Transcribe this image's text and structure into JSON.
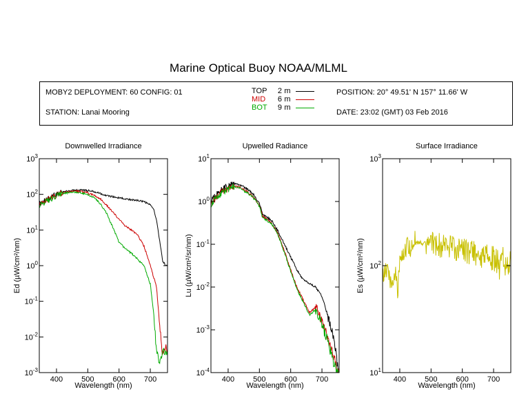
{
  "title": "Marine Optical Buoy NOAA/MLML",
  "info": {
    "deployment": "MOBY2 DEPLOYMENT: 60 CONFIG: 01",
    "station": "STATION: Lanai Mooring",
    "position": "POSITION: 20° 49.51' N   157° 11.66' W",
    "date": "DATE: 23:02 (GMT) 03 Feb 2016",
    "legend": [
      {
        "name": "TOP",
        "depth": "2",
        "unit": "m",
        "color": "#000000"
      },
      {
        "name": "MID",
        "depth": "6",
        "unit": "m",
        "color": "#cc0000"
      },
      {
        "name": "BOT",
        "depth": "9",
        "unit": "m",
        "color": "#00aa00"
      }
    ]
  },
  "chart_data": [
    {
      "type": "line",
      "title": "Downwelled Irradiance",
      "xlabel": "Wavelength (nm)",
      "ylabel": "Ed  (µW/cm²/nm)",
      "xlim": [
        345,
        755
      ],
      "ylim": [
        0.001,
        1000
      ],
      "yscale": "log",
      "xticks": [
        400,
        500,
        600,
        700
      ],
      "yticks": [
        {
          "base": "10",
          "exp": "-3"
        },
        {
          "base": "10",
          "exp": "-2"
        },
        {
          "base": "10",
          "exp": "-1"
        },
        {
          "base": "10",
          "exp": "0"
        },
        {
          "base": "10",
          "exp": "1"
        },
        {
          "base": "10",
          "exp": "2"
        },
        {
          "base": "10",
          "exp": "3"
        }
      ],
      "x": [
        345,
        360,
        380,
        400,
        420,
        440,
        460,
        480,
        500,
        520,
        540,
        560,
        580,
        600,
        620,
        640,
        660,
        680,
        700,
        710,
        720,
        730,
        740,
        750,
        755
      ],
      "series": [
        {
          "color": "#000000",
          "values": [
            55,
            65,
            80,
            100,
            118,
            125,
            130,
            132,
            128,
            118,
            105,
            92,
            85,
            80,
            75,
            70,
            68,
            62,
            50,
            40,
            18,
            5,
            1.3,
            1.0,
            1.0
          ]
        },
        {
          "color": "#cc0000",
          "values": [
            52,
            62,
            76,
            95,
            110,
            118,
            122,
            120,
            110,
            95,
            75,
            50,
            32,
            20,
            13,
            10,
            7,
            3.5,
            1.0,
            0.5,
            0.25,
            0.02,
            0.003,
            0.005,
            0.004
          ]
        },
        {
          "color": "#00aa00",
          "values": [
            50,
            58,
            72,
            90,
            105,
            112,
            115,
            110,
            98,
            80,
            55,
            30,
            12,
            4.5,
            3.0,
            2.2,
            1.5,
            1.0,
            0.3,
            0.05,
            0.004,
            0.002,
            0.004,
            0.003,
            0.003
          ]
        }
      ]
    },
    {
      "type": "line",
      "title": "Upwelled Radiance",
      "xlabel": "Wavelength (nm)",
      "ylabel": "Lu  (µW/cm²/sr/nm)",
      "xlim": [
        345,
        755
      ],
      "ylim": [
        0.0001,
        10
      ],
      "yscale": "log",
      "xticks": [
        400,
        500,
        600,
        700
      ],
      "yticks": [
        {
          "base": "10",
          "exp": "-4"
        },
        {
          "base": "10",
          "exp": "-3"
        },
        {
          "base": "10",
          "exp": "-2"
        },
        {
          "base": "10",
          "exp": "-1"
        },
        {
          "base": "10",
          "exp": "0"
        },
        {
          "base": "10",
          "exp": "1"
        }
      ],
      "x": [
        345,
        360,
        380,
        400,
        420,
        440,
        460,
        480,
        500,
        510,
        520,
        540,
        560,
        580,
        600,
        620,
        640,
        660,
        680,
        700,
        720,
        740,
        750,
        755
      ],
      "series": [
        {
          "color": "#000000",
          "values": [
            1.0,
            1.4,
            1.9,
            2.3,
            2.6,
            2.4,
            2.0,
            1.5,
            0.9,
            0.5,
            0.45,
            0.35,
            0.2,
            0.1,
            0.05,
            0.025,
            0.015,
            0.012,
            0.01,
            0.006,
            0.002,
            0.0005,
            0.00015,
            0.0001
          ]
        },
        {
          "color": "#cc0000",
          "values": [
            0.9,
            1.2,
            1.7,
            2.0,
            2.3,
            2.1,
            1.7,
            1.3,
            0.8,
            0.45,
            0.4,
            0.3,
            0.17,
            0.07,
            0.025,
            0.01,
            0.005,
            0.0025,
            0.0035,
            0.0015,
            0.0006,
            0.0002,
            0.0001,
            0.0001
          ]
        },
        {
          "color": "#00aa00",
          "values": [
            0.85,
            1.15,
            1.6,
            1.9,
            2.2,
            2.0,
            1.6,
            1.25,
            0.75,
            0.42,
            0.38,
            0.29,
            0.16,
            0.065,
            0.023,
            0.009,
            0.0045,
            0.0022,
            0.003,
            0.0013,
            0.0005,
            0.00015,
            0.0001,
            0.0001
          ]
        }
      ]
    },
    {
      "type": "line",
      "title": "Surface Irradiance",
      "xlabel": "Wavelength (nm)",
      "ylabel": "Es  (µW/cm²/nm)",
      "xlim": [
        345,
        755
      ],
      "ylim": [
        10,
        1000
      ],
      "yscale": "log",
      "xticks": [
        400,
        500,
        600,
        700
      ],
      "yticks": [
        {
          "base": "10",
          "exp": "1"
        },
        {
          "base": "10",
          "exp": "2"
        },
        {
          "base": "10",
          "exp": "3"
        }
      ],
      "x": [
        345,
        355,
        365,
        375,
        385,
        393,
        400,
        410,
        420,
        430,
        440,
        450,
        460,
        480,
        500,
        520,
        540,
        560,
        580,
        600,
        620,
        640,
        660,
        680,
        700,
        710,
        720,
        730,
        740,
        750,
        755
      ],
      "series": [
        {
          "color": "#c8c000",
          "values": [
            80,
            95,
            85,
            60,
            90,
            55,
            110,
            125,
            140,
            150,
            155,
            165,
            162,
            160,
            158,
            155,
            150,
            148,
            145,
            140,
            135,
            132,
            125,
            120,
            118,
            112,
            95,
            120,
            100,
            110,
            112
          ]
        }
      ]
    }
  ]
}
